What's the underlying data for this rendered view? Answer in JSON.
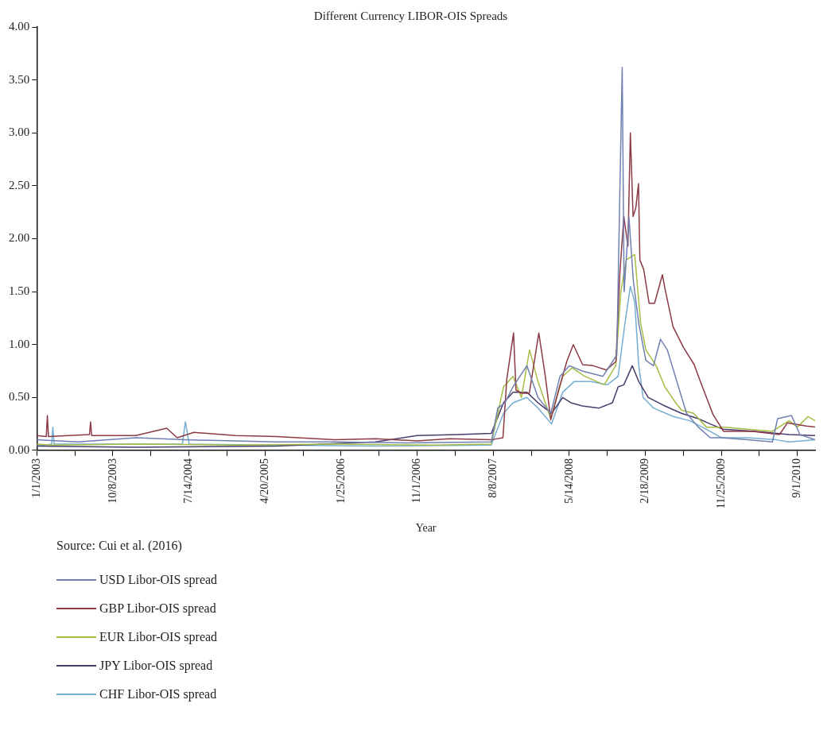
{
  "chart_data": {
    "type": "line",
    "title": "Different Currency LIBOR-OIS Spreads",
    "xlabel": "Year",
    "annotations": [
      "Source: Cui et al. (2016)"
    ],
    "xlim": [
      "2003-01-01",
      "2010-11-05"
    ],
    "xticks": [
      {
        "value": "2003-01-01",
        "label": "1/1/2003"
      },
      {
        "value": "2003-05-21",
        "label": null
      },
      {
        "value": "2003-10-08",
        "label": "10/8/2003"
      },
      {
        "value": "2004-02-25",
        "label": null
      },
      {
        "value": "2004-07-14",
        "label": "7/14/2004"
      },
      {
        "value": "2004-12-01",
        "label": null
      },
      {
        "value": "2005-04-20",
        "label": "4/20/2005"
      },
      {
        "value": "2005-09-07",
        "label": null
      },
      {
        "value": "2006-01-25",
        "label": "1/25/2006"
      },
      {
        "value": "2006-06-14",
        "label": null
      },
      {
        "value": "2006-11-01",
        "label": "11/1/2006"
      },
      {
        "value": "2007-03-21",
        "label": null
      },
      {
        "value": "2007-08-08",
        "label": "8/8/2007"
      },
      {
        "value": "2007-12-26",
        "label": null
      },
      {
        "value": "2008-05-14",
        "label": "5/14/2008"
      },
      {
        "value": "2008-10-01",
        "label": null
      },
      {
        "value": "2009-02-18",
        "label": "2/18/2009"
      },
      {
        "value": "2009-07-08",
        "label": null
      },
      {
        "value": "2009-11-25",
        "label": "11/25/2009"
      },
      {
        "value": "2010-04-14",
        "label": null
      },
      {
        "value": "2010-09-01",
        "label": "9/1/2010"
      }
    ],
    "ylim": [
      0,
      4
    ],
    "yticks": [
      {
        "value": 0,
        "label": "0.00"
      },
      {
        "value": 0.5,
        "label": "0.50"
      },
      {
        "value": 1,
        "label": "1.00"
      },
      {
        "value": 1.5,
        "label": "1.50"
      },
      {
        "value": 2,
        "label": "2.00"
      },
      {
        "value": 2.5,
        "label": "2.50"
      },
      {
        "value": 3,
        "label": "3.00"
      },
      {
        "value": 3.5,
        "label": "3.50"
      },
      {
        "value": 4,
        "label": "4.00"
      }
    ],
    "grid": false,
    "legend": "bottom",
    "marker": "none",
    "line_style": "solid",
    "series": [
      {
        "name": "USD Libor-OIS spread",
        "color": "#7080b0",
        "x": [
          "2003-01-01",
          "2003-06-01",
          "2004-01-01",
          "2004-07-01",
          "2005-06-01",
          "2006-01-01",
          "2006-10-01",
          "2007-08-01",
          "2007-08-25",
          "2007-09-20",
          "2007-10-20",
          "2007-12-10",
          "2008-01-20",
          "2008-03-07",
          "2008-04-10",
          "2008-05-15",
          "2008-07-01",
          "2008-09-15",
          "2008-11-05",
          "2008-11-25",
          "2008-12-02",
          "2008-12-20",
          "2009-01-05",
          "2009-01-25",
          "2009-02-20",
          "2009-03-20",
          "2009-04-15",
          "2009-05-10",
          "2009-06-20",
          "2009-07-20",
          "2009-09-01",
          "2009-10-15",
          "2009-11-25",
          "2010-03-01",
          "2010-06-01",
          "2010-06-20",
          "2010-08-10",
          "2010-09-10",
          "2010-11-05"
        ],
        "values": [
          0.1,
          0.08,
          0.12,
          0.1,
          0.08,
          0.08,
          0.07,
          0.08,
          0.4,
          0.45,
          0.6,
          0.8,
          0.5,
          0.35,
          0.7,
          0.8,
          0.75,
          0.7,
          0.9,
          3.62,
          1.5,
          2.2,
          1.6,
          1.2,
          0.85,
          0.8,
          1.05,
          0.95,
          0.6,
          0.35,
          0.22,
          0.12,
          0.12,
          0.1,
          0.08,
          0.3,
          0.33,
          0.15,
          0.1
        ]
      },
      {
        "name": "GBP Libor-OIS spread",
        "color": "#8b3a46",
        "x": [
          "2003-01-01",
          "2003-02-05",
          "2003-02-09",
          "2003-02-13",
          "2003-07-14",
          "2003-07-18",
          "2003-07-22",
          "2004-01-01",
          "2004-04-23",
          "2004-06-01",
          "2004-08-01",
          "2005-01-01",
          "2005-06-01",
          "2006-01-01",
          "2006-06-01",
          "2006-11-01",
          "2007-03-01",
          "2007-08-01",
          "2007-09-13",
          "2007-09-27",
          "2007-10-22",
          "2007-10-31",
          "2007-11-20",
          "2007-12-19",
          "2008-01-23",
          "2008-02-16",
          "2008-03-07",
          "2008-04-05",
          "2008-05-05",
          "2008-05-29",
          "2008-07-02",
          "2008-08-10",
          "2008-09-28",
          "2008-11-02",
          "2008-11-16",
          "2008-12-01",
          "2008-12-16",
          "2008-12-25",
          "2009-01-04",
          "2009-01-14",
          "2009-01-24",
          "2009-01-29",
          "2009-02-12",
          "2009-03-04",
          "2009-03-24",
          "2009-04-22",
          "2009-05-02",
          "2009-05-31",
          "2009-07-09",
          "2009-08-17",
          "2009-09-06",
          "2009-10-25",
          "2009-12-03",
          "2010-03-21",
          "2010-06-27",
          "2010-07-26",
          "2010-10-03",
          "2010-11-05"
        ],
        "values": [
          0.14,
          0.13,
          0.33,
          0.13,
          0.15,
          0.27,
          0.14,
          0.14,
          0.21,
          0.12,
          0.17,
          0.14,
          0.13,
          0.1,
          0.11,
          0.09,
          0.11,
          0.1,
          0.12,
          0.67,
          1.11,
          0.57,
          0.54,
          0.54,
          1.11,
          0.7,
          0.29,
          0.57,
          0.84,
          1.0,
          0.81,
          0.8,
          0.76,
          0.84,
          1.66,
          2.21,
          1.93,
          3.0,
          2.21,
          2.29,
          2.52,
          1.8,
          1.71,
          1.39,
          1.39,
          1.66,
          1.52,
          1.17,
          0.97,
          0.81,
          0.67,
          0.34,
          0.18,
          0.18,
          0.15,
          0.26,
          0.23,
          0.22
        ]
      },
      {
        "name": "EUR Libor-OIS spread",
        "color": "#a5bd45",
        "x": [
          "2003-01-01",
          "2003-03-01",
          "2004-01-01",
          "2005-01-01",
          "2006-01-01",
          "2007-01-01",
          "2007-08-01",
          "2007-09-15",
          "2007-10-20",
          "2007-11-20",
          "2007-12-20",
          "2008-01-20",
          "2008-03-07",
          "2008-04-20",
          "2008-05-25",
          "2008-07-10",
          "2008-09-20",
          "2008-11-01",
          "2008-11-20",
          "2008-12-10",
          "2009-01-10",
          "2009-02-01",
          "2009-02-20",
          "2009-03-30",
          "2009-05-01",
          "2009-06-10",
          "2009-07-01",
          "2009-08-15",
          "2009-10-01",
          "2009-12-10",
          "2010-03-01",
          "2010-06-01",
          "2010-08-01",
          "2010-09-01",
          "2010-10-10",
          "2010-11-05"
        ],
        "values": [
          0.06,
          0.05,
          0.06,
          0.05,
          0.06,
          0.05,
          0.06,
          0.6,
          0.7,
          0.5,
          0.95,
          0.65,
          0.3,
          0.7,
          0.78,
          0.7,
          0.62,
          0.8,
          1.5,
          1.8,
          1.85,
          1.2,
          0.95,
          0.8,
          0.6,
          0.45,
          0.38,
          0.35,
          0.22,
          0.22,
          0.2,
          0.18,
          0.28,
          0.22,
          0.32,
          0.28
        ]
      },
      {
        "name": "JPY Libor-OIS spread",
        "color": "#4a3c6a",
        "x": [
          "2003-01-01",
          "2004-01-01",
          "2005-06-01",
          "2006-06-01",
          "2006-11-01",
          "2007-04-01",
          "2007-08-01",
          "2007-09-15",
          "2007-10-20",
          "2007-12-10",
          "2008-01-20",
          "2008-03-10",
          "2008-04-20",
          "2008-05-20",
          "2008-07-01",
          "2008-09-01",
          "2008-10-20",
          "2008-11-10",
          "2008-12-01",
          "2009-01-01",
          "2009-01-25",
          "2009-03-01",
          "2009-05-01",
          "2009-07-01",
          "2009-09-01",
          "2009-10-15",
          "2009-12-01",
          "2010-04-01",
          "2010-08-01",
          "2010-11-05"
        ],
        "values": [
          0.04,
          0.03,
          0.04,
          0.08,
          0.14,
          0.15,
          0.16,
          0.45,
          0.55,
          0.55,
          0.45,
          0.35,
          0.5,
          0.45,
          0.42,
          0.4,
          0.45,
          0.6,
          0.62,
          0.8,
          0.65,
          0.5,
          0.42,
          0.35,
          0.3,
          0.25,
          0.2,
          0.18,
          0.15,
          0.14
        ]
      },
      {
        "name": "CHF Libor-OIS spread",
        "color": "#74aed2",
        "x": [
          "2003-01-01",
          "2003-02-25",
          "2003-03-01",
          "2003-03-06",
          "2004-06-20",
          "2004-07-01",
          "2004-07-15",
          "2005-06-01",
          "2006-06-01",
          "2007-08-01",
          "2007-09-15",
          "2007-10-20",
          "2007-12-10",
          "2008-01-20",
          "2008-03-10",
          "2008-04-20",
          "2008-06-01",
          "2008-08-01",
          "2008-10-01",
          "2008-11-10",
          "2008-12-05",
          "2008-12-25",
          "2009-01-10",
          "2009-01-25",
          "2009-02-10",
          "2009-03-20",
          "2009-06-01",
          "2009-08-01",
          "2009-10-01",
          "2009-11-25",
          "2010-03-01",
          "2010-06-15",
          "2010-08-01",
          "2010-11-05"
        ],
        "values": [
          0.04,
          0.06,
          0.22,
          0.06,
          0.06,
          0.27,
          0.06,
          0.05,
          0.04,
          0.05,
          0.35,
          0.45,
          0.5,
          0.4,
          0.25,
          0.55,
          0.65,
          0.65,
          0.62,
          0.7,
          1.2,
          1.55,
          1.4,
          0.8,
          0.5,
          0.4,
          0.32,
          0.28,
          0.2,
          0.12,
          0.12,
          0.1,
          0.08,
          0.1
        ]
      }
    ]
  }
}
